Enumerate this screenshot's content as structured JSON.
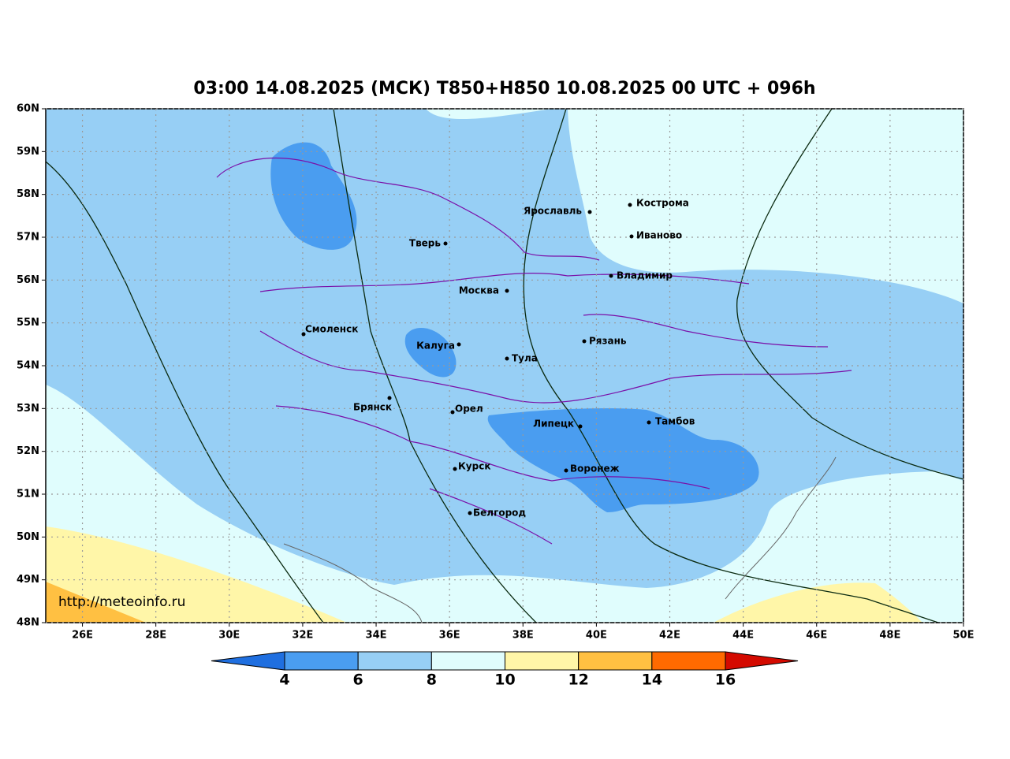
{
  "map": {
    "title": "03:00 14.08.2025 (МСК) T850+H850 10.08.2025 00 UTC + 096h",
    "xlim": [
      25,
      50
    ],
    "ylim": [
      48,
      60
    ],
    "lat_ticks": [
      {
        "value": 60,
        "label": "60N"
      },
      {
        "value": 59,
        "label": "59N"
      },
      {
        "value": 58,
        "label": "58N"
      },
      {
        "value": 57,
        "label": "57N"
      },
      {
        "value": 56,
        "label": "56N"
      },
      {
        "value": 55,
        "label": "55N"
      },
      {
        "value": 54,
        "label": "54N"
      },
      {
        "value": 53,
        "label": "53N"
      },
      {
        "value": 52,
        "label": "52N"
      },
      {
        "value": 51,
        "label": "51N"
      },
      {
        "value": 50,
        "label": "50N"
      },
      {
        "value": 49,
        "label": "49N"
      },
      {
        "value": 48,
        "label": "48N"
      }
    ],
    "lon_ticks": [
      {
        "value": 26,
        "label": "26E"
      },
      {
        "value": 28,
        "label": "28E"
      },
      {
        "value": 30,
        "label": "30E"
      },
      {
        "value": 32,
        "label": "32E"
      },
      {
        "value": 34,
        "label": "34E"
      },
      {
        "value": 36,
        "label": "36E"
      },
      {
        "value": 38,
        "label": "38E"
      },
      {
        "value": 40,
        "label": "40E"
      },
      {
        "value": 42,
        "label": "42E"
      },
      {
        "value": 44,
        "label": "44E"
      },
      {
        "value": 46,
        "label": "46E"
      },
      {
        "value": 48,
        "label": "48E"
      },
      {
        "value": 50,
        "label": "50E"
      }
    ],
    "cities": [
      "Кострома",
      "Ярославль",
      "Иваново",
      "Тверь",
      "Владимир",
      "Москва",
      "Смоленск",
      "Калуга",
      "Рязань",
      "Тула",
      "Брянск",
      "Орел",
      "Липецк",
      "Тамбов",
      "Курск",
      "Воронеж",
      "Белгород"
    ],
    "colorbar": {
      "ticks": [
        4,
        6,
        8,
        10,
        12,
        14,
        16
      ],
      "colors": [
        "#1f6fe0",
        "#4a9df0",
        "#97cff5",
        "#e0fdfd",
        "#fff6a8",
        "#ffc042",
        "#ff6a00",
        "#d40a00"
      ]
    },
    "watermark": "http://meteoinfo.ru"
  }
}
